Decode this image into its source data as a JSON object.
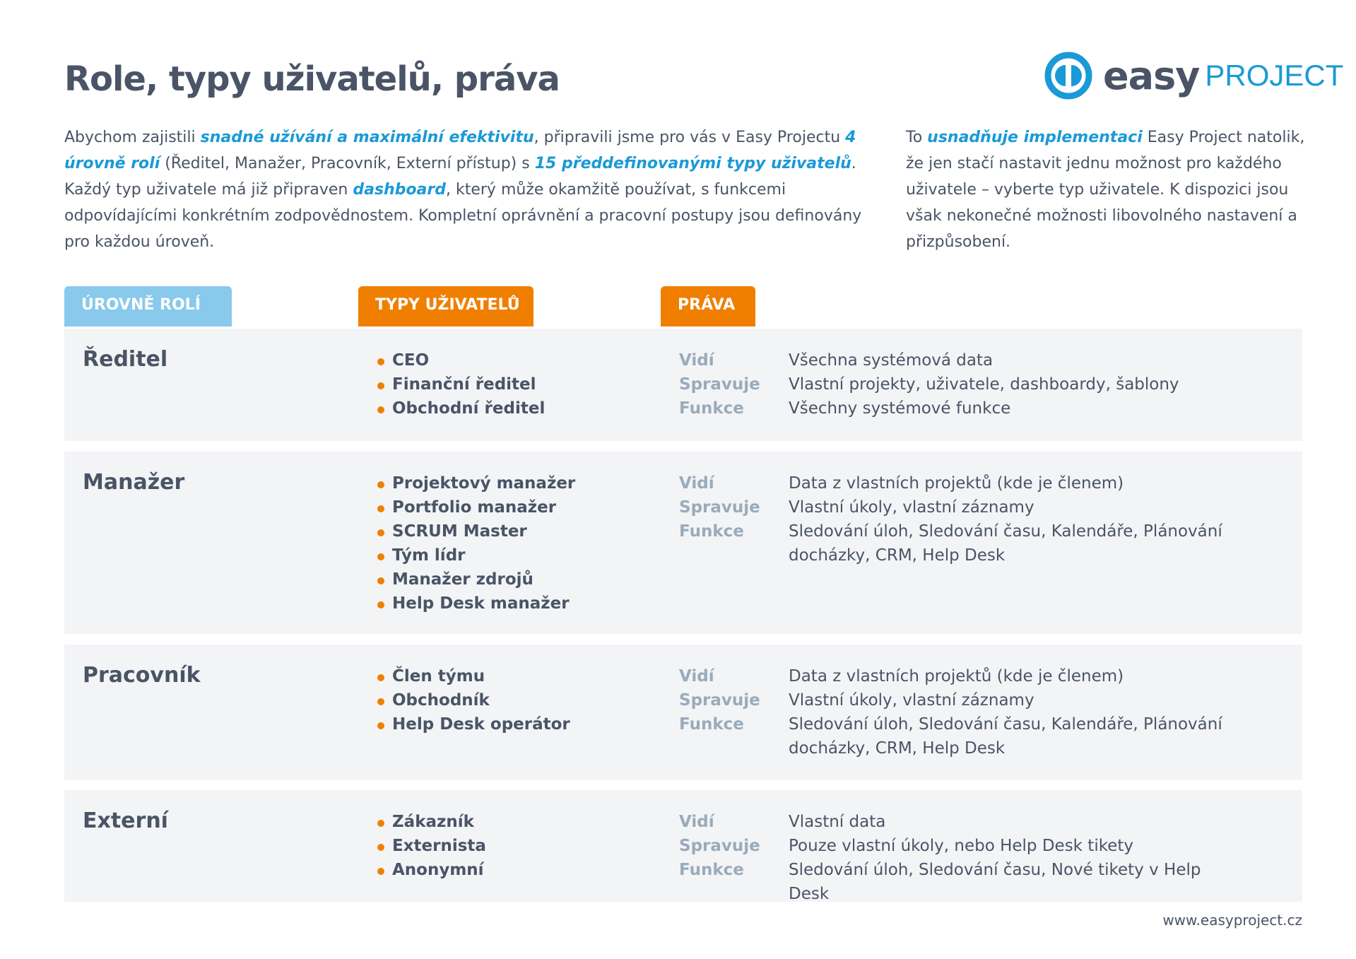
{
  "title": "Role, typy uživatelů, práva",
  "logo": {
    "easy": "easy",
    "project": "PROJECT",
    "brand_color": "#1a9ad6"
  },
  "intro": {
    "p1": [
      {
        "t": "Abychom zajistili "
      },
      {
        "t": "snadné užívání a maximální efektivitu",
        "em": true
      },
      {
        "t": ", připravili jsme pro vás v Easy Projectu "
      },
      {
        "t": "4 úrovně rolí",
        "em": true
      },
      {
        "t": " (Ředitel, Manažer, Pracovník, Externí přístup) s "
      },
      {
        "t": "15 předdefinovanými typy uživatelů",
        "em": true
      },
      {
        "t": ". Každý typ uživatele má již připraven "
      },
      {
        "t": "dashboard",
        "em": true
      },
      {
        "t": ", který může okamžitě používat, s funkcemi odpovídajícími konkrétním zodpovědnostem. Kompletní oprávnění a pracovní postupy jsou definovány pro každou úroveň."
      }
    ],
    "p2": [
      {
        "t": "To "
      },
      {
        "t": "usnadňuje implementaci",
        "em": true
      },
      {
        "t": " Easy Project natolik, že jen stačí nastavit jednu možnost pro každého uživatele – vyberte typ uživatele. K dispozici jsou však nekonečné možnosti libovolného nastavení a přizpůsobení."
      }
    ]
  },
  "headers": {
    "roles": "ÚROVNĚ ROLÍ",
    "types": "TYPY UŽIVATELŮ",
    "rights": "PRÁVA"
  },
  "rows": [
    {
      "role": "Ředitel",
      "types": [
        "CEO",
        "Finanční ředitel",
        "Obchodní ředitel"
      ],
      "rights": [
        {
          "label": "Vidí",
          "value": "Všechna systémová data"
        },
        {
          "label": "Spravuje",
          "value": "Vlastní projekty, uživatele, dashboardy, šablony"
        },
        {
          "label": "Funkce",
          "value": "Všechny systémové funkce"
        }
      ]
    },
    {
      "role": "Manažer",
      "types": [
        "Projektový manažer",
        "Portfolio manažer",
        "SCRUM Master",
        "Tým lídr",
        "Manažer zdrojů",
        "Help Desk manažer"
      ],
      "rights": [
        {
          "label": "Vidí",
          "value": "Data z vlastních projektů (kde je členem)"
        },
        {
          "label": "Spravuje",
          "value": "Vlastní úkoly, vlastní záznamy"
        },
        {
          "label": "Funkce",
          "value": "Sledování úloh, Sledování času, Kalendáře, Plánování docházky, CRM, Help Desk"
        }
      ]
    },
    {
      "role": "Pracovník",
      "types": [
        "Člen týmu",
        "Obchodník",
        "Help Desk operátor"
      ],
      "rights": [
        {
          "label": "Vidí",
          "value": "Data z vlastních projektů (kde je členem)"
        },
        {
          "label": "Spravuje",
          "value": "Vlastní úkoly, vlastní záznamy"
        },
        {
          "label": "Funkce",
          "value": "Sledování úloh, Sledování času, Kalendáře, Plánování docházky, CRM, Help Desk"
        }
      ]
    },
    {
      "role": "Externí",
      "types": [
        "Zákazník",
        "Externista",
        "Anonymní"
      ],
      "rights": [
        {
          "label": "Vidí",
          "value": "Vlastní data"
        },
        {
          "label": "Spravuje",
          "value": "Pouze vlastní úkoly, nebo Help Desk tikety"
        },
        {
          "label": "Funkce",
          "value": "Sledování úloh, Sledování času, Nové tikety v Help Desk"
        }
      ]
    }
  ],
  "footer": "www.easyproject.cz"
}
